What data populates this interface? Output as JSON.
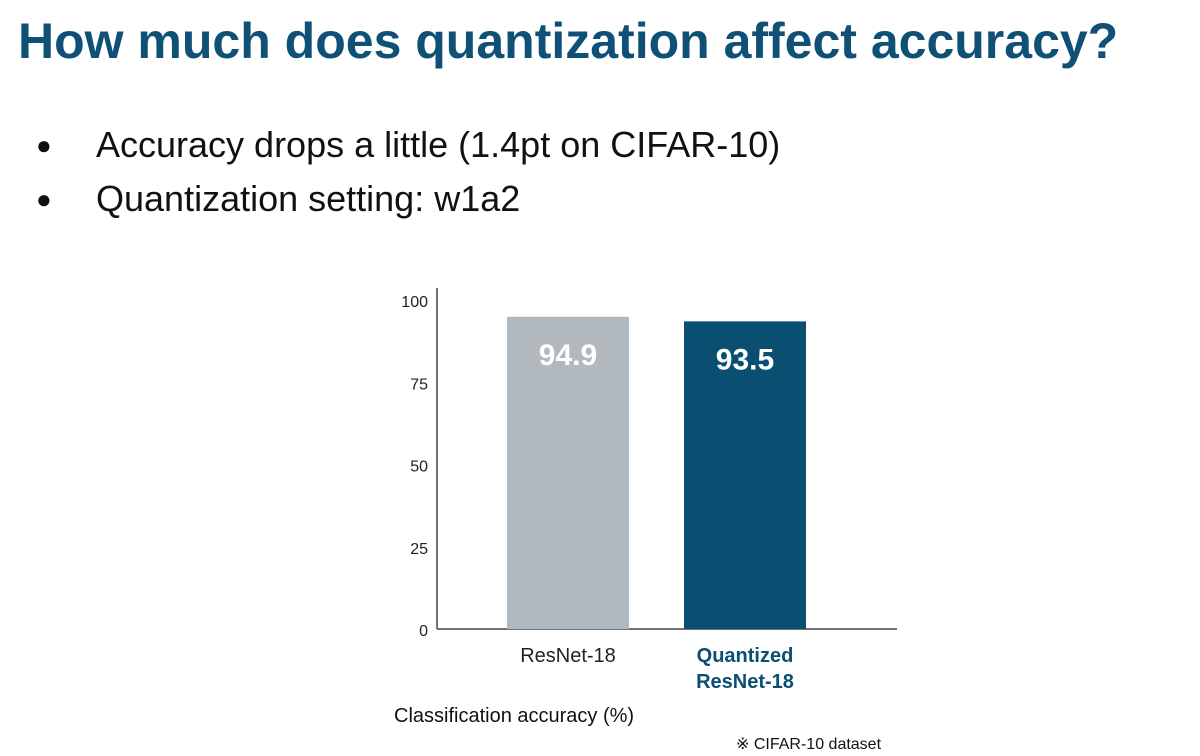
{
  "slide": {
    "title": "How much does quantization affect accuracy?",
    "bullets": [
      "Accuracy drops a little (1.4pt on CIFAR-10)",
      "Quantization setting: w1a2"
    ],
    "bullet_symbol": "●",
    "footnote": "※ CIFAR-10 dataset"
  },
  "chart_data": {
    "type": "bar",
    "categories": [
      [
        "ResNet-18"
      ],
      [
        "Quantized",
        "ResNet-18"
      ]
    ],
    "values": [
      94.9,
      93.5
    ],
    "data_labels": [
      "94.9",
      "93.5"
    ],
    "bar_colors": [
      "#b1b9be",
      "#0a4e72"
    ],
    "category_label_colors": [
      "#222222",
      "#0a4e72"
    ],
    "category_label_bold": [
      false,
      true
    ],
    "yticks": [
      0,
      25,
      50,
      75,
      100
    ],
    "ylim": [
      0,
      100
    ],
    "xlabel": "Classification accuracy (%)",
    "ylabel": "",
    "grid": false
  }
}
